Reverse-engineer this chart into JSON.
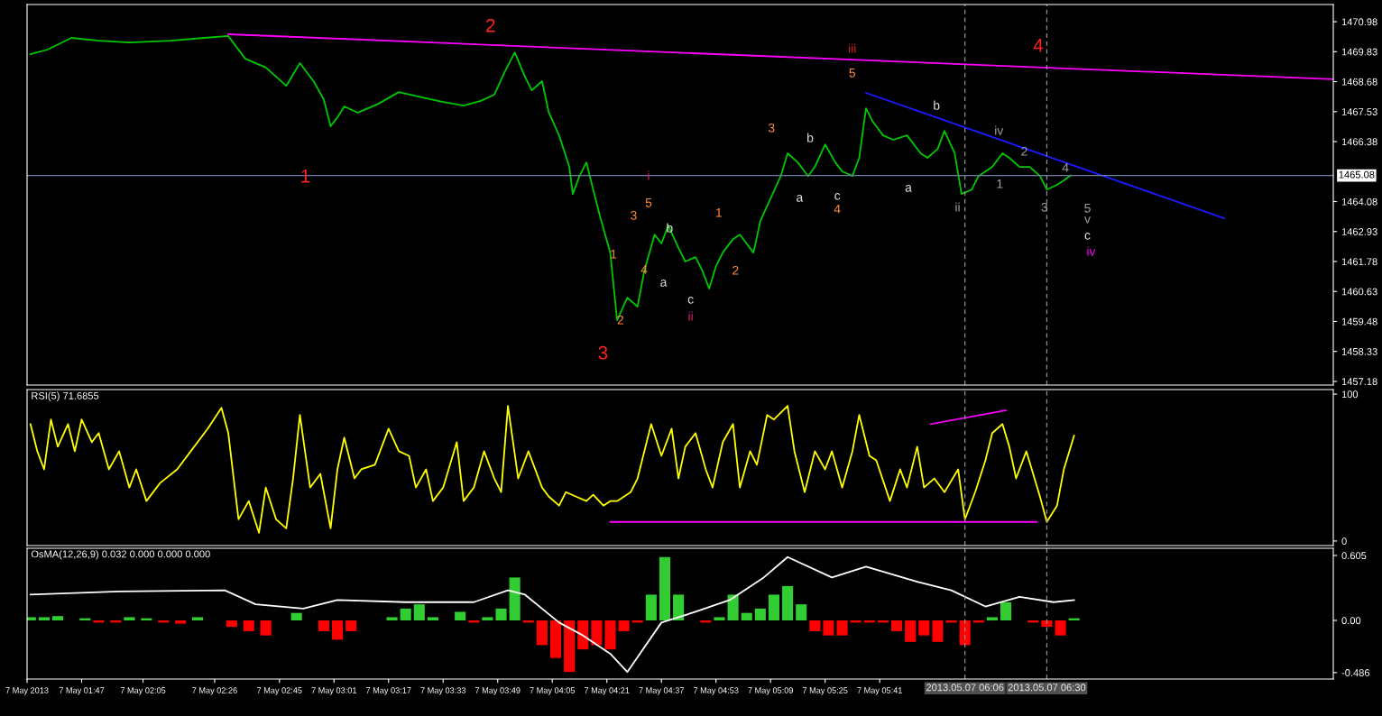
{
  "chart_data": [
    {
      "type": "line",
      "xlim": [
        "2013-05-07T01:31",
        "2013-05-07T07:54"
      ],
      "ylim": [
        1457.04,
        1471.64
      ],
      "tick_labels": "y",
      "yticks": [
        1470.98,
        1469.83,
        1468.68,
        1467.53,
        1466.38,
        1464.08,
        1462.93,
        1461.78,
        1460.63,
        1459.48,
        1458.33,
        1457.18
      ],
      "series": [
        {
          "color": "#00c800",
          "x": [
            "2013-05-07T01:32",
            "2013-05-07T01:37",
            "2013-05-07T01:44",
            "2013-05-07T01:52",
            "2013-05-07T02:01",
            "2013-05-07T02:13",
            "2013-05-07T02:23",
            "2013-05-07T02:30",
            "2013-05-07T02:35",
            "2013-05-07T02:41",
            "2013-05-07T02:47",
            "2013-05-07T02:51",
            "2013-05-07T02:55",
            "2013-05-07T02:58",
            "2013-05-07T03:00",
            "2013-05-07T03:02",
            "2013-05-07T03:04",
            "2013-05-07T03:08",
            "2013-05-07T03:14",
            "2013-05-07T03:20",
            "2013-05-07T03:27",
            "2013-05-07T03:33",
            "2013-05-07T03:39",
            "2013-05-07T03:44",
            "2013-05-07T03:48",
            "2013-05-07T03:51",
            "2013-05-07T03:54",
            "2013-05-07T03:57",
            "2013-05-07T03:59",
            "2013-05-07T04:02",
            "2013-05-07T04:04",
            "2013-05-07T04:07",
            "2013-05-07T04:10",
            "2013-05-07T04:11",
            "2013-05-07T04:13",
            "2013-05-07T04:15",
            "2013-05-07T04:17",
            "2013-05-07T04:19",
            "2013-05-07T04:22",
            "2013-05-07T04:24",
            "2013-05-07T04:27",
            "2013-05-07T04:30",
            "2013-05-07T04:32",
            "2013-05-07T04:35",
            "2013-05-07T04:37",
            "2013-05-07T04:39",
            "2013-05-07T04:42",
            "2013-05-07T04:44",
            "2013-05-07T04:47",
            "2013-05-07T04:49",
            "2013-05-07T04:51",
            "2013-05-07T04:53",
            "2013-05-07T04:55",
            "2013-05-07T04:58",
            "2013-05-07T05:00",
            "2013-05-07T05:04",
            "2013-05-07T05:06",
            "2013-05-07T05:09",
            "2013-05-07T05:12",
            "2013-05-07T05:14",
            "2013-05-07T05:17",
            "2013-05-07T05:20",
            "2013-05-07T05:22",
            "2013-05-07T05:25",
            "2013-05-07T05:28",
            "2013-05-07T05:30",
            "2013-05-07T05:33",
            "2013-05-07T05:35",
            "2013-05-07T05:37",
            "2013-05-07T05:39",
            "2013-05-07T05:42",
            "2013-05-07T05:45",
            "2013-05-07T05:49",
            "2013-05-07T05:53",
            "2013-05-07T05:55",
            "2013-05-07T05:58",
            "2013-05-07T06:00",
            "2013-05-07T06:03",
            "2013-05-07T06:05",
            "2013-05-07T06:08",
            "2013-05-07T06:10",
            "2013-05-07T06:14",
            "2013-05-07T06:17",
            "2013-05-07T06:19",
            "2013-05-07T06:22",
            "2013-05-07T06:25",
            "2013-05-07T06:28",
            "2013-05-07T06:30",
            "2013-05-07T06:33",
            "2013-05-07T06:35",
            "2013-05-07T06:37"
          ],
          "values": [
            1469.73,
            1469.91,
            1470.36,
            1470.25,
            1470.18,
            1470.25,
            1470.36,
            1470.43,
            1469.56,
            1469.22,
            1468.52,
            1469.39,
            1468.7,
            1468.0,
            1466.97,
            1467.31,
            1467.73,
            1467.49,
            1467.83,
            1468.28,
            1468.07,
            1467.9,
            1467.76,
            1467.94,
            1468.18,
            1469.04,
            1469.8,
            1468.87,
            1468.35,
            1468.7,
            1467.49,
            1466.62,
            1465.41,
            1464.37,
            1465.06,
            1465.58,
            1464.54,
            1463.51,
            1462.12,
            1459.53,
            1460.39,
            1460.05,
            1461.43,
            1462.81,
            1462.47,
            1463.16,
            1462.3,
            1461.78,
            1461.95,
            1461.43,
            1460.74,
            1461.6,
            1462.12,
            1462.64,
            1462.81,
            1462.12,
            1463.33,
            1464.2,
            1465.06,
            1465.93,
            1465.58,
            1465.06,
            1465.41,
            1466.27,
            1465.58,
            1465.24,
            1465.06,
            1465.76,
            1467.66,
            1467.14,
            1466.62,
            1466.45,
            1466.62,
            1465.93,
            1465.76,
            1466.1,
            1466.79,
            1465.93,
            1464.37,
            1464.54,
            1465.06,
            1465.41,
            1465.93,
            1465.76,
            1465.41,
            1465.41,
            1465.06,
            1464.54,
            1464.72,
            1464.89,
            1465.08
          ]
        },
        {
          "color": "#ff00ff",
          "x": [
            "2013-05-07T02:30",
            "2013-05-07T07:54"
          ],
          "values": [
            1470.5,
            1468.77
          ]
        },
        {
          "color": "#1a1aff",
          "x": [
            "2013-05-07T05:37",
            "2013-05-07T07:22"
          ],
          "values": [
            1468.25,
            1463.44
          ]
        }
      ],
      "ref_lines": [
        {
          "axis": "y",
          "value": 1465.08,
          "label": "1465.08",
          "color": "#7080a0"
        },
        {
          "axis": "x",
          "value": "2013-05-07T06:06",
          "color": "#909090",
          "line_style": "dashed"
        },
        {
          "axis": "x",
          "value": "2013-05-07T06:30",
          "color": "#909090",
          "line_style": "dashed"
        }
      ],
      "annotations": [
        "1",
        "2",
        "3",
        "4",
        "i",
        "ii",
        "iii",
        "iv",
        "5",
        "1",
        "2",
        "3",
        "4",
        "5",
        "1",
        "2",
        "3",
        "4",
        "a",
        "b",
        "c",
        "a",
        "b",
        "c",
        "a",
        "b",
        "iv",
        "2",
        "1",
        "ii",
        "3",
        "4",
        "5",
        "v",
        "c"
      ]
    },
    {
      "type": "line",
      "title": "RSI(5) 71.6855",
      "xlim": [
        "2013-05-07T01:31",
        "2013-05-07T07:54"
      ],
      "ylim": [
        -3.1,
        103.1
      ],
      "yticks": [
        0,
        100
      ],
      "tick_labels": "y",
      "series": [
        {
          "color": "#ffff00",
          "x": [
            "2013-05-07T01:32",
            "2013-05-07T01:34",
            "2013-05-07T01:36",
            "2013-05-07T01:38",
            "2013-05-07T01:40",
            "2013-05-07T01:43",
            "2013-05-07T01:45",
            "2013-05-07T01:47",
            "2013-05-07T01:50",
            "2013-05-07T01:52",
            "2013-05-07T01:55",
            "2013-05-07T01:58",
            "2013-05-07T02:01",
            "2013-05-07T02:03",
            "2013-05-07T02:06",
            "2013-05-07T02:10",
            "2013-05-07T02:15",
            "2013-05-07T02:19",
            "2013-05-07T02:24",
            "2013-05-07T02:28",
            "2013-05-07T02:30",
            "2013-05-07T02:33",
            "2013-05-07T02:36",
            "2013-05-07T02:39",
            "2013-05-07T02:41",
            "2013-05-07T02:44",
            "2013-05-07T02:47",
            "2013-05-07T02:49",
            "2013-05-07T02:51",
            "2013-05-07T02:54",
            "2013-05-07T02:57",
            "2013-05-07T03:00",
            "2013-05-07T03:02",
            "2013-05-07T03:04",
            "2013-05-07T03:07",
            "2013-05-07T03:09",
            "2013-05-07T03:13",
            "2013-05-07T03:17",
            "2013-05-07T03:20",
            "2013-05-07T03:23",
            "2013-05-07T03:25",
            "2013-05-07T03:28",
            "2013-05-07T03:30",
            "2013-05-07T03:33",
            "2013-05-07T03:37",
            "2013-05-07T03:39",
            "2013-05-07T03:42",
            "2013-05-07T03:45",
            "2013-05-07T03:48",
            "2013-05-07T03:50",
            "2013-05-07T03:52",
            "2013-05-07T03:55",
            "2013-05-07T03:58",
            "2013-05-07T04:02",
            "2013-05-07T04:04",
            "2013-05-07T04:07",
            "2013-05-07T04:09",
            "2013-05-07T04:12",
            "2013-05-07T04:15",
            "2013-05-07T04:17",
            "2013-05-07T04:20",
            "2013-05-07T04:22",
            "2013-05-07T04:24",
            "2013-05-07T04:28",
            "2013-05-07T04:30",
            "2013-05-07T04:34",
            "2013-05-07T04:37",
            "2013-05-07T04:40",
            "2013-05-07T04:42",
            "2013-05-07T04:44",
            "2013-05-07T04:47",
            "2013-05-07T04:50",
            "2013-05-07T04:52",
            "2013-05-07T04:55",
            "2013-05-07T04:58",
            "2013-05-07T05:00",
            "2013-05-07T05:03",
            "2013-05-07T05:05",
            "2013-05-07T05:08",
            "2013-05-07T05:10",
            "2013-05-07T05:14",
            "2013-05-07T05:16",
            "2013-05-07T05:19",
            "2013-05-07T05:22",
            "2013-05-07T05:25",
            "2013-05-07T05:27",
            "2013-05-07T05:30",
            "2013-05-07T05:33",
            "2013-05-07T05:35",
            "2013-05-07T05:38",
            "2013-05-07T05:40",
            "2013-05-07T05:44",
            "2013-05-07T05:47",
            "2013-05-07T05:49",
            "2013-05-07T05:52",
            "2013-05-07T05:54",
            "2013-05-07T05:57",
            "2013-05-07T06:00",
            "2013-05-07T06:04",
            "2013-05-07T06:06",
            "2013-05-07T06:09",
            "2013-05-07T06:12",
            "2013-05-07T06:14",
            "2013-05-07T06:17",
            "2013-05-07T06:19",
            "2013-05-07T06:21",
            "2013-05-07T06:24",
            "2013-05-07T06:28",
            "2013-05-07T06:30",
            "2013-05-07T06:33",
            "2013-05-07T06:35",
            "2013-05-07T06:38"
          ],
          "values": [
            79.6,
            61.1,
            48.8,
            82.7,
            64.2,
            79.6,
            61.1,
            82.7,
            67.3,
            73.5,
            48.8,
            61.1,
            36.4,
            48.8,
            27.2,
            39.5,
            48.8,
            61.1,
            76.5,
            90.7,
            73.5,
            14.8,
            27.2,
            5.6,
            36.4,
            14.8,
            8.6,
            42.6,
            85.8,
            36.4,
            45.7,
            8.6,
            48.8,
            70.4,
            42.6,
            48.8,
            51.9,
            76.5,
            61.1,
            58.0,
            36.4,
            48.8,
            27.2,
            36.4,
            67.3,
            27.2,
            36.4,
            61.1,
            42.6,
            33.3,
            92.0,
            42.6,
            61.1,
            36.4,
            30.2,
            24.1,
            33.3,
            30.2,
            27.2,
            31.5,
            24.1,
            27.2,
            27.2,
            33.3,
            42.6,
            79.6,
            58.0,
            76.5,
            42.6,
            64.2,
            73.5,
            48.8,
            36.4,
            67.3,
            79.6,
            36.4,
            61.1,
            51.9,
            85.8,
            82.7,
            92.0,
            61.1,
            33.3,
            61.1,
            48.8,
            61.1,
            36.4,
            61.1,
            85.8,
            58.0,
            54.9,
            27.2,
            48.8,
            36.4,
            64.2,
            36.4,
            42.6,
            33.3,
            48.8,
            14.8,
            33.3,
            54.9,
            73.5,
            79.6,
            64.2,
            42.6,
            61.1,
            30.2,
            13.0,
            24.1,
            48.8,
            71.7
          ]
        },
        {
          "color": "#ff00ff",
          "x": [
            "2013-05-07T05:56",
            "2013-05-07T06:18"
          ],
          "values": [
            79.6,
            88.9
          ]
        },
        {
          "color": "#ff00ff",
          "x": [
            "2013-05-07T04:22",
            "2013-05-07T06:27"
          ],
          "values": [
            13.0,
            13.0
          ]
        }
      ],
      "ref_lines": [
        {
          "axis": "x",
          "value": "2013-05-07T06:06",
          "color": "#909090",
          "line_style": "dashed"
        },
        {
          "axis": "x",
          "value": "2013-05-07T06:30",
          "color": "#909090",
          "line_style": "dashed"
        }
      ]
    },
    {
      "type": "bar",
      "title": "OsMA(12,26,9) 0.032 0.000 0.000 0.000",
      "xlim": [
        "2013-05-07T01:31",
        "2013-05-07T07:54"
      ],
      "ylim": [
        -0.546,
        0.672
      ],
      "yticks": [
        0.605,
        {
          "value": 0,
          "label": "0.00"
        },
        -0.486
      ],
      "xticks": [
        {
          "value": "2013-05-07T01:31",
          "label": "7 May 2013"
        },
        {
          "value": "2013-05-07T01:47",
          "label": "7 May 01:47"
        },
        {
          "value": "2013-05-07T02:05",
          "label": "7 May 02:05"
        },
        {
          "value": "2013-05-07T02:26",
          "label": "7 May 02:26"
        },
        {
          "value": "2013-05-07T02:45",
          "label": "7 May 02:45"
        },
        {
          "value": "2013-05-07T03:01",
          "label": "7 May 03:01"
        },
        {
          "value": "2013-05-07T03:17",
          "label": "7 May 03:17"
        },
        {
          "value": "2013-05-07T03:33",
          "label": "7 May 03:33"
        },
        {
          "value": "2013-05-07T03:49",
          "label": "7 May 03:49"
        },
        {
          "value": "2013-05-07T04:05",
          "label": "7 May 04:05"
        },
        {
          "value": "2013-05-07T04:21",
          "label": "7 May 04:21"
        },
        {
          "value": "2013-05-07T04:37",
          "label": "7 May 04:37"
        },
        {
          "value": "2013-05-07T04:53",
          "label": "7 May 04:53"
        },
        {
          "value": "2013-05-07T05:09",
          "label": "7 May 05:09"
        },
        {
          "value": "2013-05-07T05:25",
          "label": "7 May 05:25"
        },
        {
          "value": "2013-05-07T05:41",
          "label": "7 May 05:41"
        }
      ],
      "series": [
        {
          "type": "bar",
          "x": [
            "2013-05-07T01:32",
            "2013-05-07T01:36",
            "2013-05-07T01:40",
            "2013-05-07T01:44",
            "2013-05-07T01:48",
            "2013-05-07T01:52",
            "2013-05-07T01:57",
            "2013-05-07T02:01",
            "2013-05-07T02:06",
            "2013-05-07T02:11",
            "2013-05-07T02:16",
            "2013-05-07T02:21",
            "2013-05-07T02:27",
            "2013-05-07T02:31",
            "2013-05-07T02:36",
            "2013-05-07T02:41",
            "2013-05-07T02:46",
            "2013-05-07T02:50",
            "2013-05-07T02:54",
            "2013-05-07T02:58",
            "2013-05-07T03:02",
            "2013-05-07T03:06",
            "2013-05-07T03:10",
            "2013-05-07T03:14",
            "2013-05-07T03:18",
            "2013-05-07T03:22",
            "2013-05-07T03:26",
            "2013-05-07T03:30",
            "2013-05-07T03:34",
            "2013-05-07T03:38",
            "2013-05-07T03:42",
            "2013-05-07T03:46",
            "2013-05-07T03:50",
            "2013-05-07T03:54",
            "2013-05-07T03:58",
            "2013-05-07T04:02",
            "2013-05-07T04:06",
            "2013-05-07T04:10",
            "2013-05-07T04:14",
            "2013-05-07T04:18",
            "2013-05-07T04:22",
            "2013-05-07T04:26",
            "2013-05-07T04:30",
            "2013-05-07T04:34",
            "2013-05-07T04:38",
            "2013-05-07T04:42",
            "2013-05-07T04:46",
            "2013-05-07T04:50",
            "2013-05-07T04:54",
            "2013-05-07T04:58",
            "2013-05-07T05:02",
            "2013-05-07T05:06",
            "2013-05-07T05:10",
            "2013-05-07T05:14",
            "2013-05-07T05:18",
            "2013-05-07T05:22",
            "2013-05-07T05:26",
            "2013-05-07T05:30",
            "2013-05-07T05:34",
            "2013-05-07T05:38",
            "2013-05-07T05:42",
            "2013-05-07T05:46",
            "2013-05-07T05:50",
            "2013-05-07T05:54",
            "2013-05-07T05:58",
            "2013-05-07T06:02",
            "2013-05-07T06:06",
            "2013-05-07T06:10",
            "2013-05-07T06:14",
            "2013-05-07T06:18",
            "2013-05-07T06:22",
            "2013-05-07T06:26",
            "2013-05-07T06:30",
            "2013-05-07T06:34",
            "2013-05-07T06:38"
          ],
          "values": [
            0.03,
            0.03,
            0.04,
            0.0,
            0.02,
            -0.02,
            -0.02,
            0.03,
            0.02,
            -0.02,
            -0.03,
            0.03,
            0.0,
            -0.06,
            -0.1,
            -0.14,
            0.0,
            0.07,
            0.0,
            -0.1,
            -0.18,
            -0.1,
            0.0,
            0.0,
            0.03,
            0.11,
            0.15,
            0.03,
            0.0,
            0.08,
            -0.02,
            0.03,
            0.11,
            0.4,
            -0.02,
            -0.23,
            -0.35,
            -0.48,
            -0.27,
            -0.23,
            -0.27,
            -0.1,
            -0.02,
            0.24,
            0.59,
            0.24,
            0.0,
            -0.02,
            0.03,
            0.24,
            0.07,
            0.11,
            0.24,
            0.32,
            0.15,
            -0.1,
            -0.14,
            -0.14,
            -0.02,
            -0.02,
            -0.02,
            -0.1,
            -0.2,
            -0.14,
            -0.2,
            -0.02,
            -0.23,
            -0.02,
            0.03,
            0.17,
            0.0,
            -0.02,
            -0.06,
            -0.14,
            0.02
          ],
          "colors": [
            "#32cd32",
            "#32cd32",
            "#32cd32",
            "#32cd32",
            "#32cd32",
            "#ff0000",
            "#ff0000",
            "#32cd32",
            "#32cd32",
            "#ff0000",
            "#ff0000",
            "#32cd32",
            "#32cd32",
            "#ff0000",
            "#ff0000",
            "#ff0000",
            "#32cd32",
            "#32cd32",
            "#32cd32",
            "#ff0000",
            "#ff0000",
            "#ff0000",
            "#32cd32",
            "#32cd32",
            "#32cd32",
            "#32cd32",
            "#32cd32",
            "#32cd32",
            "#32cd32",
            "#32cd32",
            "#ff0000",
            "#32cd32",
            "#32cd32",
            "#32cd32",
            "#ff0000",
            "#ff0000",
            "#ff0000",
            "#ff0000",
            "#ff0000",
            "#ff0000",
            "#ff0000",
            "#ff0000",
            "#ff0000",
            "#32cd32",
            "#32cd32",
            "#32cd32",
            "#32cd32",
            "#ff0000",
            "#32cd32",
            "#32cd32",
            "#32cd32",
            "#32cd32",
            "#32cd32",
            "#32cd32",
            "#32cd32",
            "#ff0000",
            "#ff0000",
            "#ff0000",
            "#ff0000",
            "#ff0000",
            "#ff0000",
            "#ff0000",
            "#ff0000",
            "#ff0000",
            "#ff0000",
            "#ff0000",
            "#ff0000",
            "#ff0000",
            "#32cd32",
            "#32cd32",
            "#32cd32",
            "#ff0000",
            "#ff0000",
            "#ff0000",
            "#32cd32"
          ]
        },
        {
          "type": "line",
          "color": "#ffffff",
          "x": [
            "2013-05-07T01:32",
            "2013-05-07T01:58",
            "2013-05-07T02:29",
            "2013-05-07T02:38",
            "2013-05-07T02:52",
            "2013-05-07T03:02",
            "2013-05-07T03:22",
            "2013-05-07T03:42",
            "2013-05-07T03:52",
            "2013-05-07T03:57",
            "2013-05-07T04:07",
            "2013-05-07T04:14",
            "2013-05-07T04:22",
            "2013-05-07T04:27",
            "2013-05-07T04:37",
            "2013-05-07T04:47",
            "2013-05-07T04:57",
            "2013-05-07T05:07",
            "2013-05-07T05:14",
            "2013-05-07T05:27",
            "2013-05-07T05:37",
            "2013-05-07T05:52",
            "2013-05-07T06:02",
            "2013-05-07T06:12",
            "2013-05-07T06:22",
            "2013-05-07T06:32",
            "2013-05-07T06:38"
          ],
          "values": [
            0.24,
            0.27,
            0.28,
            0.15,
            0.11,
            0.19,
            0.17,
            0.17,
            0.28,
            0.24,
            -0.02,
            -0.14,
            -0.31,
            -0.48,
            -0.02,
            0.08,
            0.19,
            0.4,
            0.59,
            0.4,
            0.5,
            0.36,
            0.28,
            0.13,
            0.22,
            0.17,
            0.19
          ]
        }
      ],
      "ref_lines": [
        {
          "axis": "x",
          "value": "2013-05-07T06:06",
          "label": "2013.05.07 06:06",
          "color": "#909090",
          "line_style": "dashed"
        },
        {
          "axis": "x",
          "value": "2013-05-07T06:30",
          "label": "2013.05.07 06:30",
          "color": "#909090",
          "line_style": "dashed"
        }
      ]
    }
  ]
}
